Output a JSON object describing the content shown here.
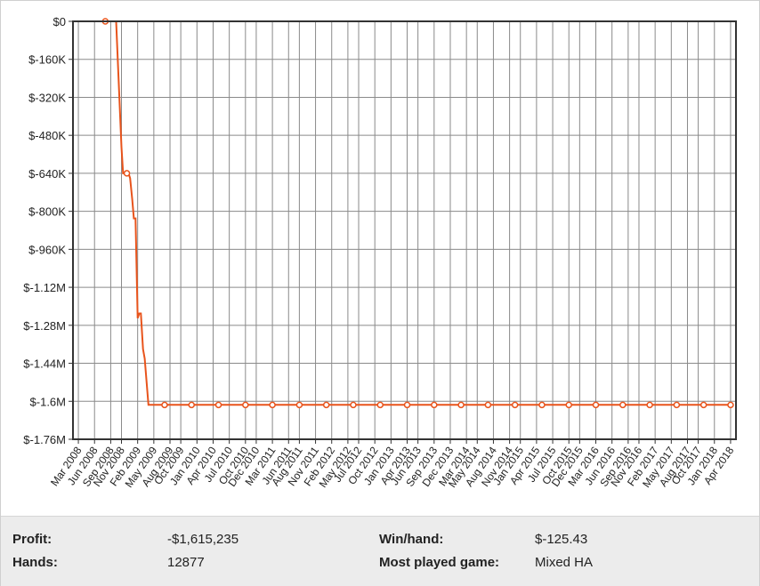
{
  "chart_data": {
    "type": "line",
    "title": "",
    "xlabel": "",
    "ylabel": "",
    "y_ticks": [
      "$0",
      "$-160K",
      "$-320K",
      "$-480K",
      "$-640K",
      "$-800K",
      "$-960K",
      "$-1.12M",
      "$-1.28M",
      "$-1.44M",
      "$-1.6M",
      "$-1.76M"
    ],
    "ylim": [
      -1760000,
      0
    ],
    "x_ticks": [
      "Mar 2008",
      "Jun 2008",
      "Sep 2008",
      "Nov 2008",
      "Feb 2009",
      "May 2009",
      "Aug 2009",
      "Oct 2009",
      "Jan 2010",
      "Apr 2010",
      "Jul 2010",
      "Oct 2010",
      "Dec 2010",
      "Mar 2011",
      "Jun 2011",
      "Aug 2011",
      "Nov 2011",
      "Feb 2012",
      "May 2012",
      "Jul 2012",
      "Oct 2012",
      "Jan 2013",
      "Apr 2013",
      "Jun 2013",
      "Sep 2013",
      "Dec 2013",
      "Mar 2014",
      "May 2014",
      "Aug 2014",
      "Nov 2014",
      "Jan 2015",
      "Apr 2015",
      "Jul 2015",
      "Oct 2015",
      "Dec 2015",
      "Mar 2016",
      "Jun 2016",
      "Sep 2016",
      "Nov 2016",
      "Feb 2017",
      "May 2017",
      "Aug 2017",
      "Oct 2017",
      "Jan 2018",
      "Apr 2018"
    ],
    "grid": true,
    "line_color": "#e8541c",
    "series": [
      {
        "x": [
          "2008-02",
          "2008-03",
          "2008-05",
          "2008-08",
          "2008-10",
          "2008-11",
          "2008-11",
          "2008-12",
          "2008-12",
          "2008-12",
          "2009-01",
          "2009-01",
          "2009-01",
          "2009-02",
          "2009-02",
          "2009-02",
          "2009-03",
          "2009-03",
          "2009-04",
          "2009-04",
          "2009-04",
          "2009-07",
          "2009-12",
          "2010-05",
          "2010-10",
          "2011-03",
          "2011-08",
          "2012-01",
          "2012-06",
          "2012-11",
          "2013-04",
          "2013-09",
          "2014-02",
          "2014-07",
          "2014-12",
          "2015-05",
          "2015-10",
          "2016-03",
          "2016-08",
          "2017-01",
          "2017-06",
          "2017-11",
          "2018-04"
        ],
        "y": [
          0,
          0,
          0,
          0,
          0,
          -530000,
          -640000,
          -640000,
          -640000,
          -660000,
          -750000,
          -830000,
          -830000,
          -1250000,
          -1230000,
          -1230000,
          -1380000,
          -1420000,
          -1615235,
          -1615235,
          -1615235,
          -1615235,
          -1615235,
          -1615235,
          -1615235,
          -1615235,
          -1615235,
          -1615235,
          -1615235,
          -1615235,
          -1615235,
          -1615235,
          -1615235,
          -1615235,
          -1615235,
          -1615235,
          -1615235,
          -1615235,
          -1615235,
          -1615235,
          -1615235,
          -1615235,
          -1615235
        ],
        "marker_x": [
          "2008-08",
          "2008-12",
          "2009-07",
          "2009-12",
          "2010-05",
          "2010-10",
          "2011-03",
          "2011-08",
          "2012-01",
          "2012-06",
          "2012-11",
          "2013-04",
          "2013-09",
          "2014-02",
          "2014-07",
          "2014-12",
          "2015-05",
          "2015-10",
          "2016-03",
          "2016-08",
          "2017-01",
          "2017-06",
          "2017-11",
          "2018-04"
        ],
        "marker_y": [
          0,
          -640000,
          -1615235,
          -1615235,
          -1615235,
          -1615235,
          -1615235,
          -1615235,
          -1615235,
          -1615235,
          -1615235,
          -1615235,
          -1615235,
          -1615235,
          -1615235,
          -1615235,
          -1615235,
          -1615235,
          -1615235,
          -1615235,
          -1615235,
          -1615235,
          -1615235,
          -1615235
        ]
      }
    ]
  },
  "stats": {
    "profit_label": "Profit:",
    "profit_value": "-$1,615,235",
    "hands_label": "Hands:",
    "hands_value": "12877",
    "winhand_label": "Win/hand:",
    "winhand_value": "$-125.43",
    "game_label": "Most played game:",
    "game_value": "Mixed HA"
  }
}
